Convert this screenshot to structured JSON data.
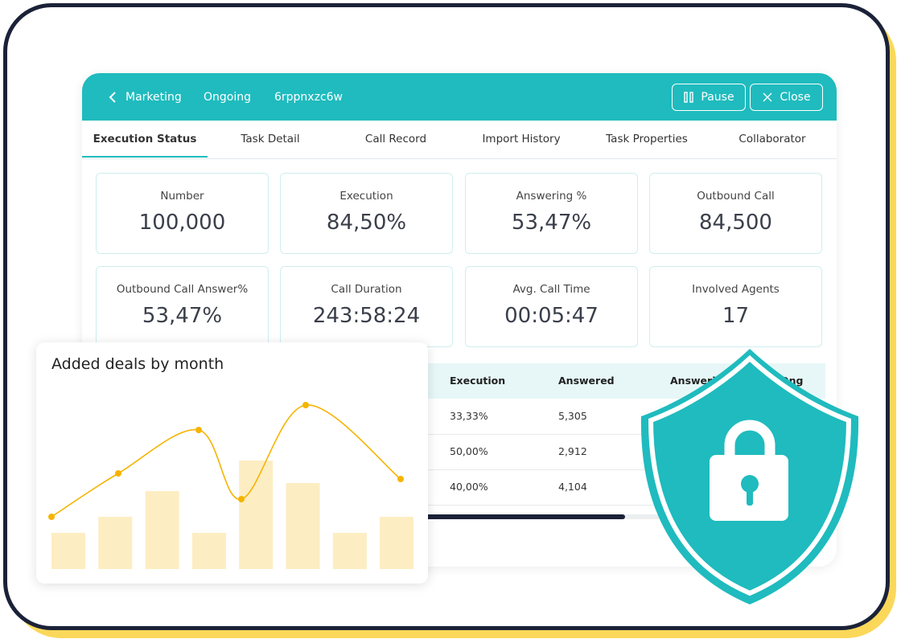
{
  "header": {
    "back": "Marketing",
    "status": "Ongoing",
    "task_id": "6rppnxzc6w",
    "buttons": [
      "Pause",
      "Close"
    ]
  },
  "tabs": [
    "Execution Status",
    "Task Detail",
    "Call Record",
    "Import History",
    "Task Properties",
    "Collaborator"
  ],
  "stats": [
    {
      "label": "Number",
      "value": "100,000"
    },
    {
      "label": "Execution",
      "value": "84,50%"
    },
    {
      "label": "Answering %",
      "value": "53,47%"
    },
    {
      "label": "Outbound Call",
      "value": "84,500"
    },
    {
      "label": "Outbound Call Answer%",
      "value": "53,47%"
    },
    {
      "label": "Call Duration",
      "value": "243:58:24"
    },
    {
      "label": "Avg. Call Time",
      "value": "00:05:47"
    },
    {
      "label": "Involved Agents",
      "value": "17"
    }
  ],
  "table": {
    "columns": [
      "Execution",
      "Answered",
      "Answering",
      "Ong"
    ],
    "rows": [
      [
        "33,33%",
        "5,305"
      ],
      [
        "50,00%",
        "2,912"
      ],
      [
        "40,00%",
        "4,104"
      ]
    ]
  },
  "deals_chart": {
    "type": "bar",
    "title": "Added deals by month",
    "bars": {
      "color": "#fdedc2",
      "values": [
        45,
        65,
        97,
        45,
        135,
        107,
        45,
        65
      ]
    },
    "line": {
      "color": "#f5b400",
      "x": [
        0,
        83,
        183,
        236,
        316,
        434
      ],
      "values": [
        65,
        119,
        173,
        87,
        204,
        112
      ]
    }
  }
}
